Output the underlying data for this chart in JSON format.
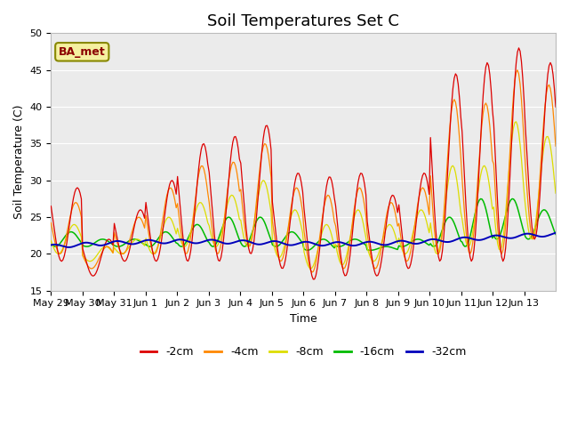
{
  "title": "Soil Temperatures Set C",
  "xlabel": "Time",
  "ylabel": "Soil Temperature (C)",
  "ylim": [
    15,
    50
  ],
  "annotation": "BA_met",
  "annotation_box_facecolor": "#f5f0a0",
  "annotation_box_edgecolor": "#888800",
  "annotation_text_color": "#8b0000",
  "legend": [
    "-2cm",
    "-4cm",
    "-8cm",
    "-16cm",
    "-32cm"
  ],
  "legend_colors": [
    "#dd0000",
    "#ff8800",
    "#dddd00",
    "#00bb00",
    "#0000bb"
  ],
  "background_color": "#ffffff",
  "plot_bg_color": "#ebebeb",
  "x_tick_labels": [
    "May 29",
    "May 30",
    "May 31",
    "Jun 1",
    "Jun 2",
    "Jun 3",
    "Jun 4",
    "Jun 5",
    "Jun 6",
    "Jun 7",
    "Jun 8",
    "Jun 9",
    "Jun 10",
    "Jun 11",
    "Jun 12",
    "Jun 13"
  ],
  "grid_color": "#ffffff",
  "title_fontsize": 13,
  "axis_label_fontsize": 9,
  "yticks": [
    15,
    20,
    25,
    30,
    35,
    40,
    45,
    50
  ]
}
